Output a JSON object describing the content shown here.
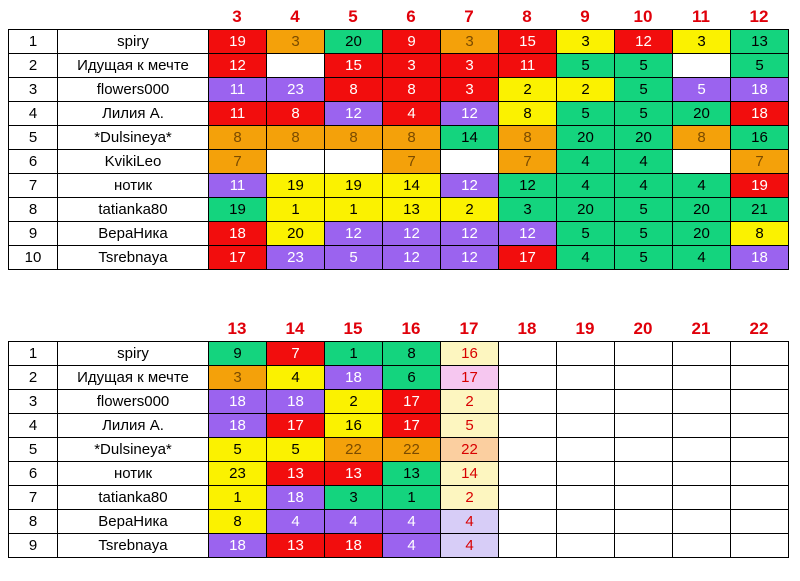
{
  "colors": {
    "red": "#f20d0d",
    "orange": "#f4a10a",
    "green": "#14d47e",
    "yellow": "#fbf200",
    "purple": "#9b63ef",
    "white": "#ffffff",
    "lightpink": "#f6c7f0",
    "lightyellow": "#fdf6c0",
    "lightorange": "#fbcfa0",
    "lavender": "#d7cdf7",
    "header_text": "#e0000a"
  },
  "table1": {
    "columns": [
      "3",
      "4",
      "5",
      "6",
      "7",
      "8",
      "9",
      "10",
      "11",
      "12"
    ],
    "rows": [
      {
        "num": "1",
        "name": "spiry",
        "cells": [
          [
            "19",
            "red"
          ],
          [
            "3",
            "orange"
          ],
          [
            "20",
            "green"
          ],
          [
            "9",
            "red"
          ],
          [
            "3",
            "orange"
          ],
          [
            "15",
            "red"
          ],
          [
            "3",
            "yellow"
          ],
          [
            "12",
            "red"
          ],
          [
            "3",
            "yellow"
          ],
          [
            "13",
            "green"
          ]
        ]
      },
      {
        "num": "2",
        "name": "Идущая к мечте",
        "cells": [
          [
            "12",
            "red"
          ],
          [
            "",
            "white"
          ],
          [
            "15",
            "red"
          ],
          [
            "3",
            "red"
          ],
          [
            "3",
            "red"
          ],
          [
            "11",
            "red"
          ],
          [
            "5",
            "green"
          ],
          [
            "5",
            "green"
          ],
          [
            "",
            "white"
          ],
          [
            "5",
            "green"
          ]
        ]
      },
      {
        "num": "3",
        "name": "flowers000",
        "cells": [
          [
            "11",
            "purple"
          ],
          [
            "23",
            "purple"
          ],
          [
            "8",
            "red"
          ],
          [
            "8",
            "red"
          ],
          [
            "3",
            "red"
          ],
          [
            "2",
            "yellow"
          ],
          [
            "2",
            "yellow"
          ],
          [
            "5",
            "green"
          ],
          [
            "5",
            "purple"
          ],
          [
            "18",
            "purple"
          ]
        ]
      },
      {
        "num": "4",
        "name": "Лилия А.",
        "cells": [
          [
            "11",
            "red"
          ],
          [
            "8",
            "red"
          ],
          [
            "12",
            "purple"
          ],
          [
            "4",
            "red"
          ],
          [
            "12",
            "purple"
          ],
          [
            "8",
            "yellow"
          ],
          [
            "5",
            "green"
          ],
          [
            "5",
            "green"
          ],
          [
            "20",
            "green"
          ],
          [
            "18",
            "red"
          ]
        ]
      },
      {
        "num": "5",
        "name": "*Dulsineya*",
        "cells": [
          [
            "8",
            "orange"
          ],
          [
            "8",
            "orange"
          ],
          [
            "8",
            "orange"
          ],
          [
            "8",
            "orange"
          ],
          [
            "14",
            "green"
          ],
          [
            "8",
            "orange"
          ],
          [
            "20",
            "green"
          ],
          [
            "20",
            "green"
          ],
          [
            "8",
            "orange"
          ],
          [
            "16",
            "green"
          ]
        ]
      },
      {
        "num": "6",
        "name": "KvikiLeo",
        "cells": [
          [
            "7",
            "orange"
          ],
          [
            "",
            "white"
          ],
          [
            "",
            "white"
          ],
          [
            "7",
            "orange"
          ],
          [
            "",
            "white"
          ],
          [
            "7",
            "orange"
          ],
          [
            "4",
            "green"
          ],
          [
            "4",
            "green"
          ],
          [
            "",
            "white"
          ],
          [
            "7",
            "orange"
          ]
        ]
      },
      {
        "num": "7",
        "name": "нотик",
        "cells": [
          [
            "11",
            "purple"
          ],
          [
            "19",
            "yellow"
          ],
          [
            "19",
            "yellow"
          ],
          [
            "14",
            "yellow"
          ],
          [
            "12",
            "purple"
          ],
          [
            "12",
            "green"
          ],
          [
            "4",
            "green"
          ],
          [
            "4",
            "green"
          ],
          [
            "4",
            "green"
          ],
          [
            "19",
            "red"
          ]
        ]
      },
      {
        "num": "8",
        "name": "tatianka80",
        "cells": [
          [
            "19",
            "green"
          ],
          [
            "1",
            "yellow"
          ],
          [
            "1",
            "yellow"
          ],
          [
            "13",
            "yellow"
          ],
          [
            "2",
            "yellow"
          ],
          [
            "3",
            "green"
          ],
          [
            "20",
            "green"
          ],
          [
            "5",
            "green"
          ],
          [
            "20",
            "green"
          ],
          [
            "21",
            "green"
          ]
        ]
      },
      {
        "num": "9",
        "name": "ВераНика",
        "cells": [
          [
            "18",
            "red"
          ],
          [
            "20",
            "yellow"
          ],
          [
            "12",
            "purple"
          ],
          [
            "12",
            "purple"
          ],
          [
            "12",
            "purple"
          ],
          [
            "12",
            "purple"
          ],
          [
            "5",
            "green"
          ],
          [
            "5",
            "green"
          ],
          [
            "20",
            "green"
          ],
          [
            "8",
            "yellow"
          ]
        ]
      },
      {
        "num": "10",
        "name": "Tsrebnaya",
        "cells": [
          [
            "17",
            "red"
          ],
          [
            "23",
            "purple"
          ],
          [
            "5",
            "purple"
          ],
          [
            "12",
            "purple"
          ],
          [
            "12",
            "purple"
          ],
          [
            "17",
            "red"
          ],
          [
            "4",
            "green"
          ],
          [
            "5",
            "green"
          ],
          [
            "4",
            "green"
          ],
          [
            "18",
            "purple"
          ]
        ]
      }
    ]
  },
  "table2": {
    "columns": [
      "13",
      "14",
      "15",
      "16",
      "17",
      "18",
      "19",
      "20",
      "21",
      "22"
    ],
    "rows": [
      {
        "num": "1",
        "name": "spiry",
        "cells": [
          [
            "9",
            "green"
          ],
          [
            "7",
            "red"
          ],
          [
            "1",
            "green"
          ],
          [
            "8",
            "green"
          ],
          [
            "16",
            "lightyellow"
          ],
          [
            "",
            "white"
          ],
          [
            "",
            "white"
          ],
          [
            "",
            "white"
          ],
          [
            "",
            "white"
          ],
          [
            "",
            "white"
          ]
        ]
      },
      {
        "num": "2",
        "name": "Идущая к мечте",
        "cells": [
          [
            "3",
            "orange"
          ],
          [
            "4",
            "yellow"
          ],
          [
            "18",
            "purple"
          ],
          [
            "6",
            "green"
          ],
          [
            "17",
            "lightpink"
          ],
          [
            "",
            "white"
          ],
          [
            "",
            "white"
          ],
          [
            "",
            "white"
          ],
          [
            "",
            "white"
          ],
          [
            "",
            "white"
          ]
        ]
      },
      {
        "num": "3",
        "name": "flowers000",
        "cells": [
          [
            "18",
            "purple"
          ],
          [
            "18",
            "purple"
          ],
          [
            "2",
            "yellow"
          ],
          [
            "17",
            "red"
          ],
          [
            "2",
            "lightyellow"
          ],
          [
            "",
            "white"
          ],
          [
            "",
            "white"
          ],
          [
            "",
            "white"
          ],
          [
            "",
            "white"
          ],
          [
            "",
            "white"
          ]
        ]
      },
      {
        "num": "4",
        "name": "Лилия А.",
        "cells": [
          [
            "18",
            "purple"
          ],
          [
            "17",
            "red"
          ],
          [
            "16",
            "yellow"
          ],
          [
            "17",
            "red"
          ],
          [
            "5",
            "lightyellow"
          ],
          [
            "",
            "white"
          ],
          [
            "",
            "white"
          ],
          [
            "",
            "white"
          ],
          [
            "",
            "white"
          ],
          [
            "",
            "white"
          ]
        ]
      },
      {
        "num": "5",
        "name": "*Dulsineya*",
        "cells": [
          [
            "5",
            "yellow"
          ],
          [
            "5",
            "yellow"
          ],
          [
            "22",
            "orange"
          ],
          [
            "22",
            "orange"
          ],
          [
            "22",
            "lightorange"
          ],
          [
            "",
            "white"
          ],
          [
            "",
            "white"
          ],
          [
            "",
            "white"
          ],
          [
            "",
            "white"
          ],
          [
            "",
            "white"
          ]
        ]
      },
      {
        "num": "6",
        "name": "нотик",
        "cells": [
          [
            "23",
            "yellow"
          ],
          [
            "13",
            "red"
          ],
          [
            "13",
            "red"
          ],
          [
            "13",
            "green"
          ],
          [
            "14",
            "lightyellow"
          ],
          [
            "",
            "white"
          ],
          [
            "",
            "white"
          ],
          [
            "",
            "white"
          ],
          [
            "",
            "white"
          ],
          [
            "",
            "white"
          ]
        ]
      },
      {
        "num": "7",
        "name": "tatianka80",
        "cells": [
          [
            "1",
            "yellow"
          ],
          [
            "18",
            "purple"
          ],
          [
            "3",
            "green"
          ],
          [
            "1",
            "green"
          ],
          [
            "2",
            "lightyellow"
          ],
          [
            "",
            "white"
          ],
          [
            "",
            "white"
          ],
          [
            "",
            "white"
          ],
          [
            "",
            "white"
          ],
          [
            "",
            "white"
          ]
        ]
      },
      {
        "num": "8",
        "name": "ВераНика",
        "cells": [
          [
            "8",
            "yellow"
          ],
          [
            "4",
            "purple"
          ],
          [
            "4",
            "purple"
          ],
          [
            "4",
            "purple"
          ],
          [
            "4",
            "lavender"
          ],
          [
            "",
            "white"
          ],
          [
            "",
            "white"
          ],
          [
            "",
            "white"
          ],
          [
            "",
            "white"
          ],
          [
            "",
            "white"
          ]
        ]
      },
      {
        "num": "9",
        "name": "Tsrebnaya",
        "cells": [
          [
            "18",
            "purple"
          ],
          [
            "13",
            "red"
          ],
          [
            "18",
            "red"
          ],
          [
            "4",
            "purple"
          ],
          [
            "4",
            "lavender"
          ],
          [
            "",
            "white"
          ],
          [
            "",
            "white"
          ],
          [
            "",
            "white"
          ],
          [
            "",
            "white"
          ],
          [
            "",
            "white"
          ]
        ]
      }
    ]
  }
}
